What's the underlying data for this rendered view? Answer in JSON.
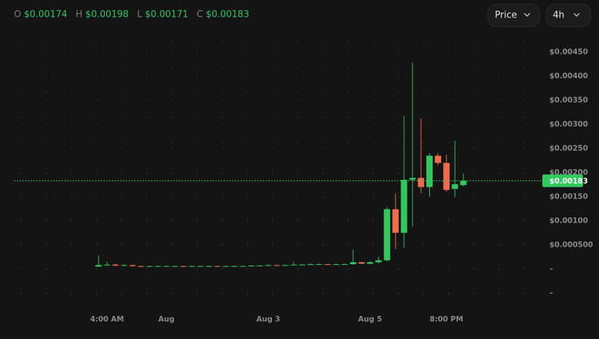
{
  "header": {
    "ohlc": [
      {
        "key": "O",
        "label": "$0.00174"
      },
      {
        "key": "H",
        "label": "$0.00198"
      },
      {
        "key": "L",
        "label": "$0.00171"
      },
      {
        "key": "C",
        "label": "$0.00183"
      }
    ],
    "buttons": [
      "Price",
      "4h"
    ]
  },
  "chart_data": {
    "type": "candlestick",
    "categories": [
      null,
      "4:00 AM",
      null,
      null,
      null,
      null,
      null,
      null,
      "Aug",
      null,
      null,
      null,
      null,
      null,
      null,
      null,
      null,
      null,
      null,
      null,
      "Aug 3",
      null,
      null,
      null,
      null,
      null,
      null,
      null,
      null,
      null,
      null,
      null,
      "Aug 5",
      null,
      null,
      null,
      null,
      null,
      null,
      null,
      null,
      "8:00 PM",
      null,
      null
    ],
    "open": [
      5e-05,
      8e-05,
      9e-05,
      7e-05,
      8e-05,
      6e-05,
      5e-05,
      6e-05,
      6e-05,
      6e-05,
      6e-05,
      5e-05,
      6e-05,
      6e-05,
      6e-05,
      5e-05,
      6e-05,
      6e-05,
      6e-05,
      7e-05,
      7e-05,
      8e-05,
      7e-05,
      8e-05,
      9e-05,
      9e-05,
      0.0001,
      0.0001,
      9e-05,
      0.0001,
      0.0001,
      0.00014,
      0.00011,
      0.00014,
      0.00018,
      0.00124,
      0.00075,
      0.00185,
      0.00189,
      0.0017,
      0.00235,
      0.0022,
      0.00166,
      0.00174
    ],
    "high": [
      0.00028,
      0.00015,
      0.00011,
      0.0001,
      9e-05,
      7e-05,
      7e-05,
      7e-05,
      7e-05,
      7e-05,
      7e-05,
      7e-05,
      7e-05,
      7e-05,
      7e-05,
      7e-05,
      7e-05,
      7e-05,
      8e-05,
      8e-05,
      9e-05,
      9e-05,
      9e-05,
      0.00014,
      0.0001,
      0.00011,
      0.00011,
      0.00011,
      0.00011,
      0.00011,
      0.0004,
      0.00015,
      0.00016,
      0.00025,
      0.00128,
      0.00157,
      0.00318,
      0.00428,
      0.00312,
      0.0024,
      0.0024,
      0.00237,
      0.00266,
      0.00198
    ],
    "low": [
      4e-05,
      6e-05,
      6e-05,
      6e-05,
      5e-05,
      4e-05,
      4e-05,
      5e-05,
      5e-05,
      5e-05,
      4e-05,
      4e-05,
      5e-05,
      5e-05,
      4e-05,
      4e-05,
      5e-05,
      5e-05,
      5e-05,
      6e-05,
      6e-05,
      6e-05,
      6e-05,
      7e-05,
      8e-05,
      8e-05,
      9e-05,
      8e-05,
      8e-05,
      9e-05,
      9e-05,
      0.0001,
      0.0001,
      0.00012,
      0.00016,
      0.00041,
      0.00044,
      0.00088,
      0.00157,
      0.0015,
      0.00215,
      0.0016,
      0.00149,
      0.00171
    ],
    "close": [
      8e-05,
      9e-05,
      7e-05,
      8e-05,
      6e-05,
      5e-05,
      6e-05,
      6e-05,
      6e-05,
      6e-05,
      5e-05,
      6e-05,
      6e-05,
      6e-05,
      5e-05,
      6e-05,
      6e-05,
      6e-05,
      7e-05,
      7e-05,
      8e-05,
      7e-05,
      8e-05,
      9e-05,
      9e-05,
      0.0001,
      0.0001,
      9e-05,
      0.0001,
      0.0001,
      0.00014,
      0.00011,
      0.00014,
      0.00018,
      0.00124,
      0.00075,
      0.00185,
      0.00189,
      0.0017,
      0.00235,
      0.0022,
      0.00164,
      0.00176,
      0.00183
    ],
    "up_color": "#2fc95e",
    "down_color": "#f06a4e",
    "ylim": [
      -0.0008,
      0.005
    ],
    "yticks": [
      {
        "value": 0.0045,
        "label": "$0.00450"
      },
      {
        "value": 0.004,
        "label": "$0.00400"
      },
      {
        "value": 0.0035,
        "label": "$0.00350"
      },
      {
        "value": 0.003,
        "label": "$0.00300"
      },
      {
        "value": 0.0025,
        "label": "$0.00250"
      },
      {
        "value": 0.002,
        "label": "$0.00200"
      },
      {
        "value": 0.0015,
        "label": "$0.00150"
      },
      {
        "value": 0.001,
        "label": "$0.00100"
      },
      {
        "value": 0.0005,
        "label": "$0.000500"
      },
      {
        "value": 0,
        "label": "–"
      },
      {
        "value": -0.0005,
        "label": "–"
      }
    ],
    "grid": true,
    "price_line": {
      "value": 0.00183,
      "label": "$0.00183"
    }
  }
}
